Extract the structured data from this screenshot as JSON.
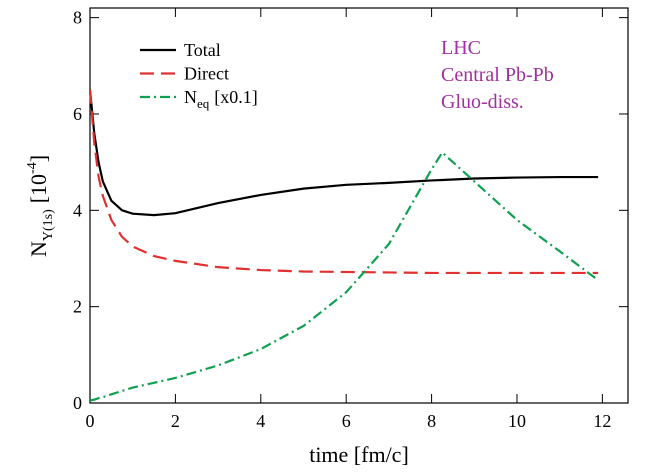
{
  "chart_data": {
    "type": "line",
    "xlabel": "time [fm/c]",
    "ylabel": {
      "main": "N",
      "sub": "Υ(1s)",
      "open": "[10",
      "sup": "-4",
      "close": "]"
    },
    "annotations": [
      "LHC",
      "Central Pb-Pb",
      "Gluo-diss."
    ],
    "annotation_color": "#a0309f",
    "x": [
      0,
      0.1,
      0.2,
      0.3,
      0.5,
      0.75,
      1,
      1.5,
      2,
      3,
      4,
      5,
      6,
      7,
      8,
      8.25,
      9,
      10,
      11,
      11.9
    ],
    "series": [
      {
        "name": "Total",
        "color": "#000000",
        "dash": "none",
        "values": [
          6.5,
          5.6,
          5.0,
          4.6,
          4.2,
          4.0,
          3.93,
          3.9,
          3.94,
          4.15,
          4.32,
          4.45,
          4.53,
          4.57,
          4.62,
          4.63,
          4.66,
          4.68,
          4.69,
          4.69
        ]
      },
      {
        "name": "Direct",
        "color": "#e03030",
        "dash": "14,7",
        "values": [
          6.5,
          5.4,
          4.7,
          4.3,
          3.8,
          3.45,
          3.25,
          3.05,
          2.95,
          2.82,
          2.76,
          2.73,
          2.72,
          2.71,
          2.7,
          2.7,
          2.7,
          2.7,
          2.7,
          2.7
        ]
      },
      {
        "name": "N",
        "name_sub": "eq",
        "name_note": "[x0.1]",
        "color": "#10a050",
        "dash": "10,4,2,4",
        "values": [
          0.05,
          0.07,
          0.1,
          0.12,
          0.18,
          0.25,
          0.32,
          0.42,
          0.52,
          0.78,
          1.12,
          1.6,
          2.3,
          3.3,
          4.85,
          5.2,
          4.6,
          3.8,
          3.15,
          2.55
        ]
      }
    ],
    "xlim": [
      0,
      12.6
    ],
    "xticks": [
      0,
      2,
      4,
      6,
      8,
      10,
      12
    ],
    "ylim": [
      0,
      8.2
    ],
    "yticks": [
      0,
      2,
      4,
      6,
      8
    ],
    "grid": false
  }
}
